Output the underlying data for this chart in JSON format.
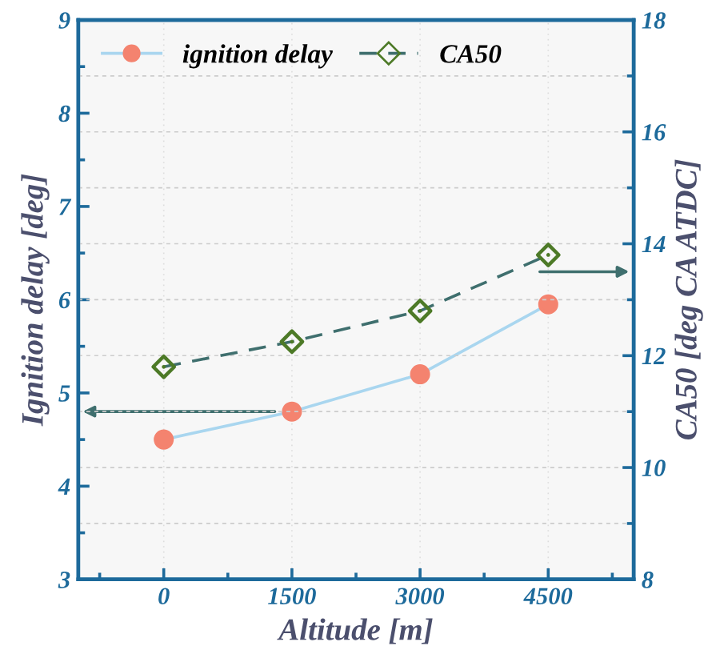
{
  "chart_data": {
    "type": "line",
    "xlabel": "Altitude [m]",
    "ylabel": "Ignition delay [deg]",
    "y2label": "CA50 [deg CA ATDC]",
    "x": [
      0,
      1500,
      3000,
      4500
    ],
    "series": [
      {
        "name": "ignition delay",
        "color": "#a9d6ef",
        "colors": [
          "#f4836f",
          "#f4836f",
          "#f4836f",
          "#f4836f"
        ],
        "values": [
          4.5,
          4.8,
          5.2,
          5.95
        ],
        "marker": "circle",
        "line_style": "solid"
      },
      {
        "name": "CA50",
        "color": "#3f6f6e",
        "colors": [
          "#4d7a27",
          "#4d7a27",
          "#4d7a27",
          "#4d7a27"
        ],
        "values": [
          11.8,
          12.25,
          12.8,
          13.8
        ],
        "marker": "diamond",
        "line_style": "dashed",
        "axis": "y2"
      }
    ],
    "xlim": [
      -1000,
      5500
    ],
    "xticks": [
      0,
      1500,
      3000,
      4500
    ],
    "ylim": [
      3,
      9
    ],
    "yticks": [
      3,
      4,
      5,
      6,
      7,
      8,
      9
    ],
    "y2lim": [
      8,
      18
    ],
    "y2ticks": [
      8,
      10,
      12,
      14,
      16,
      18
    ],
    "grid": true,
    "legend": "top left"
  }
}
